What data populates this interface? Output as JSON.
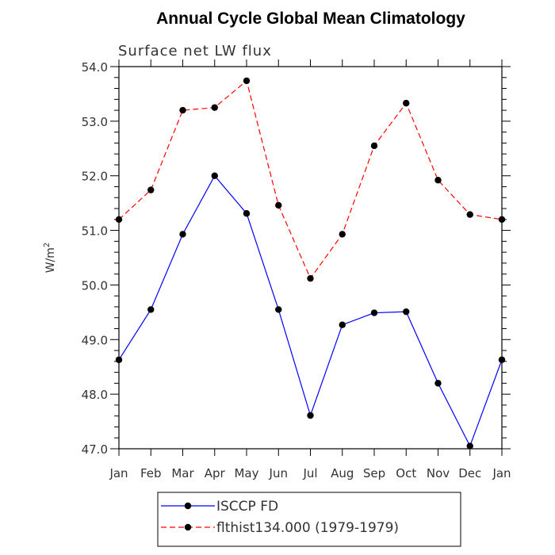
{
  "chart_data": {
    "type": "line",
    "title": "Annual Cycle Global Mean Climatology",
    "subtitle": "Surface net LW flux",
    "ylabel": "W/m",
    "ylabel_sup": "2",
    "ylim": [
      47.0,
      54.0
    ],
    "yticks": [
      "47.0",
      "48.0",
      "49.0",
      "50.0",
      "51.0",
      "52.0",
      "53.0",
      "54.0"
    ],
    "categories": [
      "Jan",
      "Feb",
      "Mar",
      "Apr",
      "May",
      "Jun",
      "Jul",
      "Aug",
      "Sep",
      "Oct",
      "Nov",
      "Dec",
      "Jan"
    ],
    "series": [
      {
        "name": "ISCCP FD",
        "color": "#0000ff",
        "style": "solid",
        "values": [
          48.63,
          49.55,
          50.93,
          52.0,
          51.31,
          49.55,
          47.61,
          49.27,
          49.49,
          49.51,
          48.2,
          47.05,
          48.63
        ]
      },
      {
        "name": "flthist134.000 (1979-1979)",
        "color": "#ff0000",
        "style": "dashed",
        "values": [
          51.2,
          51.74,
          53.2,
          53.25,
          53.74,
          51.46,
          50.12,
          50.93,
          52.55,
          53.33,
          51.92,
          51.29,
          51.2
        ]
      }
    ],
    "legend_position": "bottom",
    "grid": false
  }
}
